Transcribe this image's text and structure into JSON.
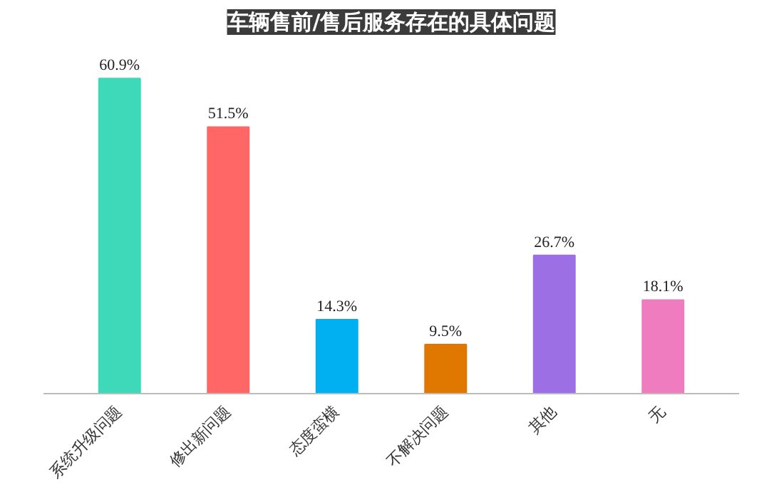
{
  "chart_data": {
    "type": "bar",
    "title": "车辆售前/售后服务存在的具体问题",
    "categories": [
      "系统升级问题",
      "修出新问题",
      "态度蛮横",
      "不解决问题",
      "其他",
      "无"
    ],
    "values": [
      60.9,
      51.5,
      14.3,
      9.5,
      26.7,
      18.1
    ],
    "colors": [
      "#3dd9b8",
      "#ff6666",
      "#00b0f0",
      "#e07800",
      "#9c6fe4",
      "#f07cc0"
    ],
    "value_labels": [
      "60.9%",
      "51.5%",
      "14.3%",
      "9.5%",
      "26.7%",
      "18.1%"
    ],
    "grid": false
  }
}
